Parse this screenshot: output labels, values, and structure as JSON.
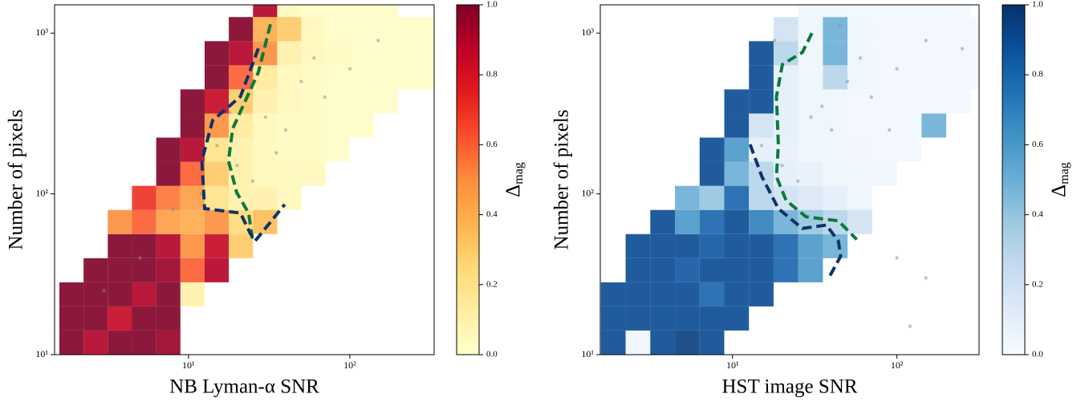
{
  "chart_data": [
    {
      "type": "heatmap",
      "xlabel": "NB Lyman-α SNR",
      "ylabel": "Number of pixels",
      "xscale": "log",
      "yscale": "log",
      "xlim": [
        1.48,
        333
      ],
      "ylim": [
        10,
        1500
      ],
      "xticks": [
        {
          "value": 10,
          "label": "10¹"
        },
        {
          "value": 100,
          "label": "10²"
        }
      ],
      "yticks": [
        {
          "value": 10,
          "label": "10¹"
        },
        {
          "value": 100,
          "label": "10²"
        },
        {
          "value": 1000,
          "label": "10³"
        }
      ],
      "xbins": [
        1.585,
        2.239,
        3.162,
        4.467,
        6.31,
        8.913,
        12.59,
        17.78,
        25.12,
        35.48,
        50.12,
        70.79,
        100,
        141.3,
        199.5,
        281.8,
        398.1
      ],
      "ybins": [
        10,
        14.13,
        19.95,
        28.18,
        39.81,
        56.23,
        79.43,
        112.2,
        158.5,
        223.9,
        316.2,
        446.7,
        631,
        891.3,
        1259,
        1778
      ],
      "values": [
        [
          1,
          0.9,
          1,
          1,
          0.95,
          null,
          null,
          null,
          null,
          null,
          null,
          null,
          null,
          null,
          null,
          null
        ],
        [
          1,
          1,
          0.85,
          1,
          1,
          null,
          null,
          null,
          null,
          null,
          null,
          null,
          null,
          null,
          null,
          null
        ],
        [
          1,
          1,
          1,
          0.9,
          1,
          0.1,
          null,
          null,
          null,
          null,
          null,
          null,
          null,
          null,
          null,
          null
        ],
        [
          null,
          1,
          1,
          1,
          0.95,
          0.6,
          0.9,
          null,
          null,
          null,
          null,
          null,
          null,
          null,
          null,
          null
        ],
        [
          null,
          null,
          1,
          1,
          0.9,
          0.5,
          0.85,
          0.3,
          null,
          null,
          null,
          null,
          null,
          null,
          null,
          null
        ],
        [
          null,
          null,
          0.5,
          0.6,
          0.45,
          0.4,
          0.5,
          0.25,
          0.35,
          null,
          null,
          null,
          null,
          null,
          null,
          null
        ],
        [
          null,
          null,
          null,
          0.7,
          0.55,
          0.45,
          0.2,
          0.1,
          0.1,
          0.05,
          null,
          null,
          null,
          null,
          null,
          null
        ],
        [
          null,
          null,
          null,
          null,
          1,
          0.6,
          0.3,
          0.1,
          0.05,
          0.05,
          0.05,
          null,
          null,
          null,
          null,
          null
        ],
        [
          null,
          null,
          null,
          null,
          1,
          0.9,
          0.2,
          0.1,
          0.05,
          0.03,
          0.03,
          0.02,
          null,
          null,
          null,
          null
        ],
        [
          null,
          null,
          null,
          null,
          null,
          1,
          0.5,
          0.15,
          0.05,
          0.03,
          0.03,
          0.02,
          0.02,
          null,
          null,
          null
        ],
        [
          null,
          null,
          null,
          null,
          null,
          1,
          0.85,
          0.3,
          0.1,
          0.05,
          0.03,
          0.02,
          0.02,
          0.02,
          null,
          null
        ],
        [
          null,
          null,
          null,
          null,
          null,
          null,
          1,
          0.6,
          0.15,
          0.05,
          0.03,
          0.02,
          0.02,
          0.02,
          0.02,
          0.02
        ],
        [
          null,
          null,
          null,
          null,
          null,
          null,
          1,
          0.9,
          0.5,
          0.1,
          0.05,
          0.03,
          0.02,
          0.02,
          0.02,
          0.02
        ],
        [
          null,
          null,
          null,
          null,
          null,
          null,
          null,
          1,
          0.4,
          0.3,
          0.05,
          0.02,
          0.02,
          0.02,
          0.02,
          0.02
        ],
        [
          null,
          null,
          null,
          null,
          null,
          null,
          null,
          null,
          0.9,
          0.05,
          0.02,
          0.02,
          0.02,
          0.02,
          null,
          null
        ]
      ],
      "colormap": [
        "#ffffcc",
        "#ffeda0",
        "#fed976",
        "#feb24c",
        "#fd8d3c",
        "#fc4e2a",
        "#e31a1c",
        "#bd0026",
        "#800026"
      ],
      "clim": [
        0,
        1
      ],
      "cticks": [
        {
          "value": 0,
          "label": "0.0"
        },
        {
          "value": 0.2,
          "label": "0.2"
        },
        {
          "value": 0.4,
          "label": "0.4"
        },
        {
          "value": 0.6,
          "label": "0.6"
        },
        {
          "value": 0.8,
          "label": "0.8"
        },
        {
          "value": 1,
          "label": "1.0"
        }
      ],
      "colorbar_label": "Δ",
      "colorbar_label_subscript": "mag",
      "points": {
        "color": "#8c8c8c",
        "x": [
          30,
          50,
          20,
          8,
          5,
          60,
          100,
          15,
          40,
          25,
          12,
          70,
          150,
          6,
          3,
          18,
          35,
          22
        ],
        "y": [
          300,
          500,
          150,
          80,
          40,
          700,
          600,
          200,
          250,
          120,
          100,
          400,
          900,
          60,
          25,
          320,
          180,
          450
        ]
      },
      "contours": [
        {
          "color": "#0b7a3b",
          "x": [
            32.2,
            27.1,
            18.8,
            17.7,
            19.9,
            23.6,
            25
          ],
          "y": [
            1135,
            570,
            255,
            161,
            102,
            76,
            51
          ]
        },
        {
          "color": "#0d3466",
          "x": [
            27.1,
            21,
            14.1,
            12.1,
            12.6,
            21,
            24.1,
            25.9,
            39.5
          ],
          "y": [
            804,
            403,
            286,
            161,
            81,
            76,
            57,
            51,
            86
          ]
        }
      ]
    },
    {
      "type": "heatmap",
      "xlabel": "HST image SNR",
      "ylabel": "Number of pixels",
      "xscale": "log",
      "yscale": "log",
      "xlim": [
        1.57,
        316
      ],
      "ylim": [
        10,
        1500
      ],
      "xticks": [
        {
          "value": 10,
          "label": "10¹"
        },
        {
          "value": 100,
          "label": "10²"
        }
      ],
      "yticks": [
        {
          "value": 10,
          "label": "10¹"
        },
        {
          "value": 100,
          "label": "10²"
        },
        {
          "value": 1000,
          "label": "10³"
        }
      ],
      "xbins": [
        1.585,
        2.239,
        3.162,
        4.467,
        6.31,
        8.913,
        12.59,
        17.78,
        25.12,
        35.48,
        50.12,
        70.79,
        100,
        141.3,
        199.5,
        281.8,
        398.1
      ],
      "ybins": [
        10,
        14.13,
        19.95,
        28.18,
        39.81,
        56.23,
        79.43,
        112.2,
        158.5,
        223.9,
        316.2,
        446.7,
        631,
        891.3,
        1259,
        1778
      ],
      "values": [
        [
          0.9,
          0.05,
          0.9,
          0.95,
          0.9,
          null,
          null,
          null,
          null,
          null,
          null,
          null,
          null,
          null,
          null,
          null
        ],
        [
          0.9,
          0.9,
          0.9,
          0.9,
          0.9,
          0.9,
          null,
          null,
          null,
          null,
          null,
          null,
          null,
          null,
          null,
          null
        ],
        [
          0.9,
          0.9,
          0.9,
          0.9,
          0.8,
          0.9,
          0.9,
          null,
          null,
          null,
          null,
          null,
          null,
          null,
          null,
          null
        ],
        [
          null,
          0.9,
          0.9,
          0.85,
          0.9,
          0.9,
          0.9,
          0.8,
          0.6,
          null,
          null,
          null,
          null,
          null,
          null,
          null
        ],
        [
          null,
          0.9,
          0.9,
          0.9,
          0.85,
          0.9,
          0.9,
          0.8,
          0.6,
          0.5,
          null,
          null,
          null,
          null,
          null,
          null
        ],
        [
          null,
          null,
          0.9,
          0.6,
          0.8,
          0.9,
          0.7,
          0.5,
          0.4,
          0.3,
          0.2,
          null,
          null,
          null,
          null,
          null
        ],
        [
          null,
          null,
          null,
          0.5,
          0.4,
          0.8,
          0.3,
          0.2,
          0.15,
          0.1,
          0.05,
          null,
          null,
          null,
          null,
          null
        ],
        [
          null,
          null,
          null,
          null,
          0.9,
          0.5,
          0.3,
          0.1,
          0.08,
          0.05,
          0.05,
          0.05,
          null,
          null,
          null,
          null
        ],
        [
          null,
          null,
          null,
          null,
          0.9,
          0.6,
          0.1,
          0.08,
          0.05,
          0.05,
          0.04,
          0.03,
          0.03,
          null,
          null,
          null
        ],
        [
          null,
          null,
          null,
          null,
          null,
          0.9,
          0.2,
          0.1,
          0.05,
          0.05,
          0.03,
          0.03,
          0.03,
          0.5,
          null,
          null
        ],
        [
          null,
          null,
          null,
          null,
          null,
          0.9,
          0.9,
          0.1,
          0.05,
          0.05,
          0.03,
          0.03,
          0.03,
          0.03,
          0.03,
          null
        ],
        [
          null,
          null,
          null,
          null,
          null,
          null,
          0.9,
          0.1,
          0.05,
          0.3,
          0.05,
          0.03,
          0.03,
          0.03,
          0.03,
          0.03
        ],
        [
          null,
          null,
          null,
          null,
          null,
          null,
          0.9,
          0.3,
          0.05,
          0.5,
          0.05,
          0.03,
          0.03,
          0.03,
          0.03,
          0.03
        ],
        [
          null,
          null,
          null,
          null,
          null,
          null,
          null,
          0.2,
          0.05,
          0.5,
          0.05,
          0.03,
          0.03,
          0.03,
          0.03,
          0.03
        ],
        [
          null,
          null,
          null,
          null,
          null,
          null,
          null,
          null,
          0.05,
          0.05,
          0.03,
          0.03,
          0.03,
          0.03,
          0.03,
          null
        ]
      ],
      "colormap": [
        "#f7fbff",
        "#deebf7",
        "#c6dbef",
        "#9ecae1",
        "#6baed6",
        "#4292c6",
        "#2171b5",
        "#08519c",
        "#08306b"
      ],
      "clim": [
        0,
        1
      ],
      "cticks": [
        {
          "value": 0,
          "label": "0.0"
        },
        {
          "value": 0.2,
          "label": "0.2"
        },
        {
          "value": 0.4,
          "label": "0.4"
        },
        {
          "value": 0.6,
          "label": "0.6"
        },
        {
          "value": 0.8,
          "label": "0.8"
        },
        {
          "value": 1,
          "label": "1.0"
        }
      ],
      "colorbar_label": "Δ",
      "colorbar_label_subscript": "mag",
      "points": {
        "color": "#8c8c8c",
        "x": [
          30,
          50,
          20,
          60,
          100,
          15,
          40,
          25,
          70,
          150,
          35,
          45,
          100,
          150,
          120,
          250,
          90,
          18
        ],
        "y": [
          300,
          500,
          150,
          700,
          600,
          200,
          250,
          120,
          400,
          900,
          350,
          1100,
          40,
          30,
          15,
          800,
          250,
          900
        ]
      },
      "contours": [
        {
          "color": "#0b7a3b",
          "x": [
            30.4,
            26.6,
            20.1,
            18.5,
            19,
            18.5,
            21.2,
            28,
            44,
            57
          ],
          "y": [
            1000,
            759,
            638,
            403,
            203,
            128,
            91,
            72,
            68,
            52
          ]
        },
        {
          "color": "#0d3466",
          "x": [
            12.8,
            15.1,
            19,
            26.6,
            37.2,
            44,
            45.5,
            38.5
          ],
          "y": [
            203,
            128,
            81,
            61,
            64,
            51,
            41,
            30
          ]
        }
      ]
    }
  ]
}
